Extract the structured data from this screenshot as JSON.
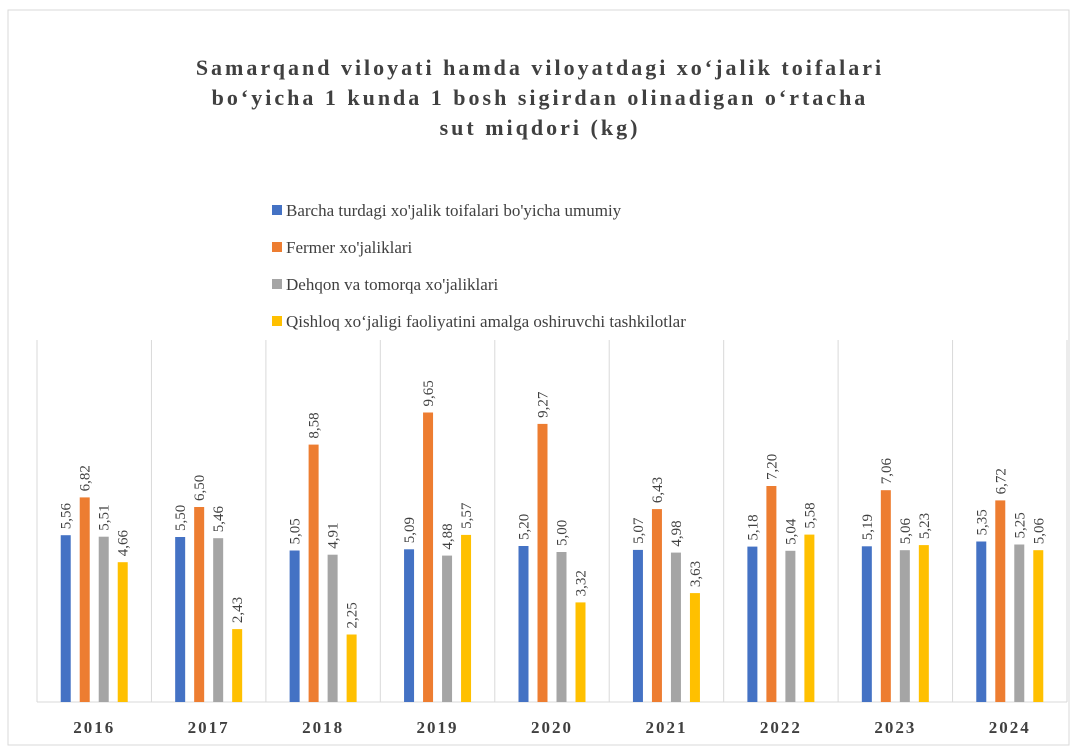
{
  "chart_data": {
    "type": "bar",
    "title": [
      "Samarqand viloyati hamda viloyatdagi xo‘jalik toifalari",
      "bo‘yicha 1 kunda 1 bosh sigirdan olinadigan o‘rtacha",
      "sut  miqdori (kg)"
    ],
    "categories": [
      "2016",
      "2017",
      "2018",
      "2019",
      "2020",
      "2021",
      "2022",
      "2023",
      "2024"
    ],
    "series": [
      {
        "name": "Barcha turdagi xo'jalik toifalari bo'yicha umumiy",
        "color": "#4472c4",
        "values": [
          5.56,
          5.5,
          5.05,
          5.09,
          5.2,
          5.07,
          5.18,
          5.19,
          5.35
        ],
        "value_labels": [
          "5,56",
          "5,50",
          "5,05",
          "5,09",
          "5,20",
          "5,07",
          "5,18",
          "5,19",
          "5,35"
        ]
      },
      {
        "name": "Fermer xo'jaliklari",
        "color": "#ed7d31",
        "values": [
          6.82,
          6.5,
          8.58,
          9.65,
          9.27,
          6.43,
          7.2,
          7.06,
          6.72
        ],
        "value_labels": [
          "6,82",
          "6,50",
          "8,58",
          "9,65",
          "9,27",
          "6,43",
          "7,20",
          "7,06",
          "6,72"
        ]
      },
      {
        "name": "Dehqon va tomorqa xo'jaliklari",
        "color": "#a5a5a5",
        "values": [
          5.51,
          5.46,
          4.91,
          4.88,
          5.0,
          4.98,
          5.04,
          5.06,
          5.25
        ],
        "value_labels": [
          "5,51",
          "5,46",
          "4,91",
          "4,88",
          "5,00",
          "4,98",
          "5,04",
          "5,06",
          "5,25"
        ]
      },
      {
        "name": "Qishloq xo‘jaligi faoliyatini amalga oshiruvchi tashkilotlar",
        "color": "#ffc000",
        "values": [
          4.66,
          2.43,
          2.25,
          5.57,
          3.32,
          3.63,
          5.58,
          5.23,
          5.06
        ],
        "value_labels": [
          "4,66",
          "2,43",
          "2,25",
          "5,57",
          "3,32",
          "3,63",
          "5,58",
          "5,23",
          "5,06"
        ]
      }
    ]
  }
}
